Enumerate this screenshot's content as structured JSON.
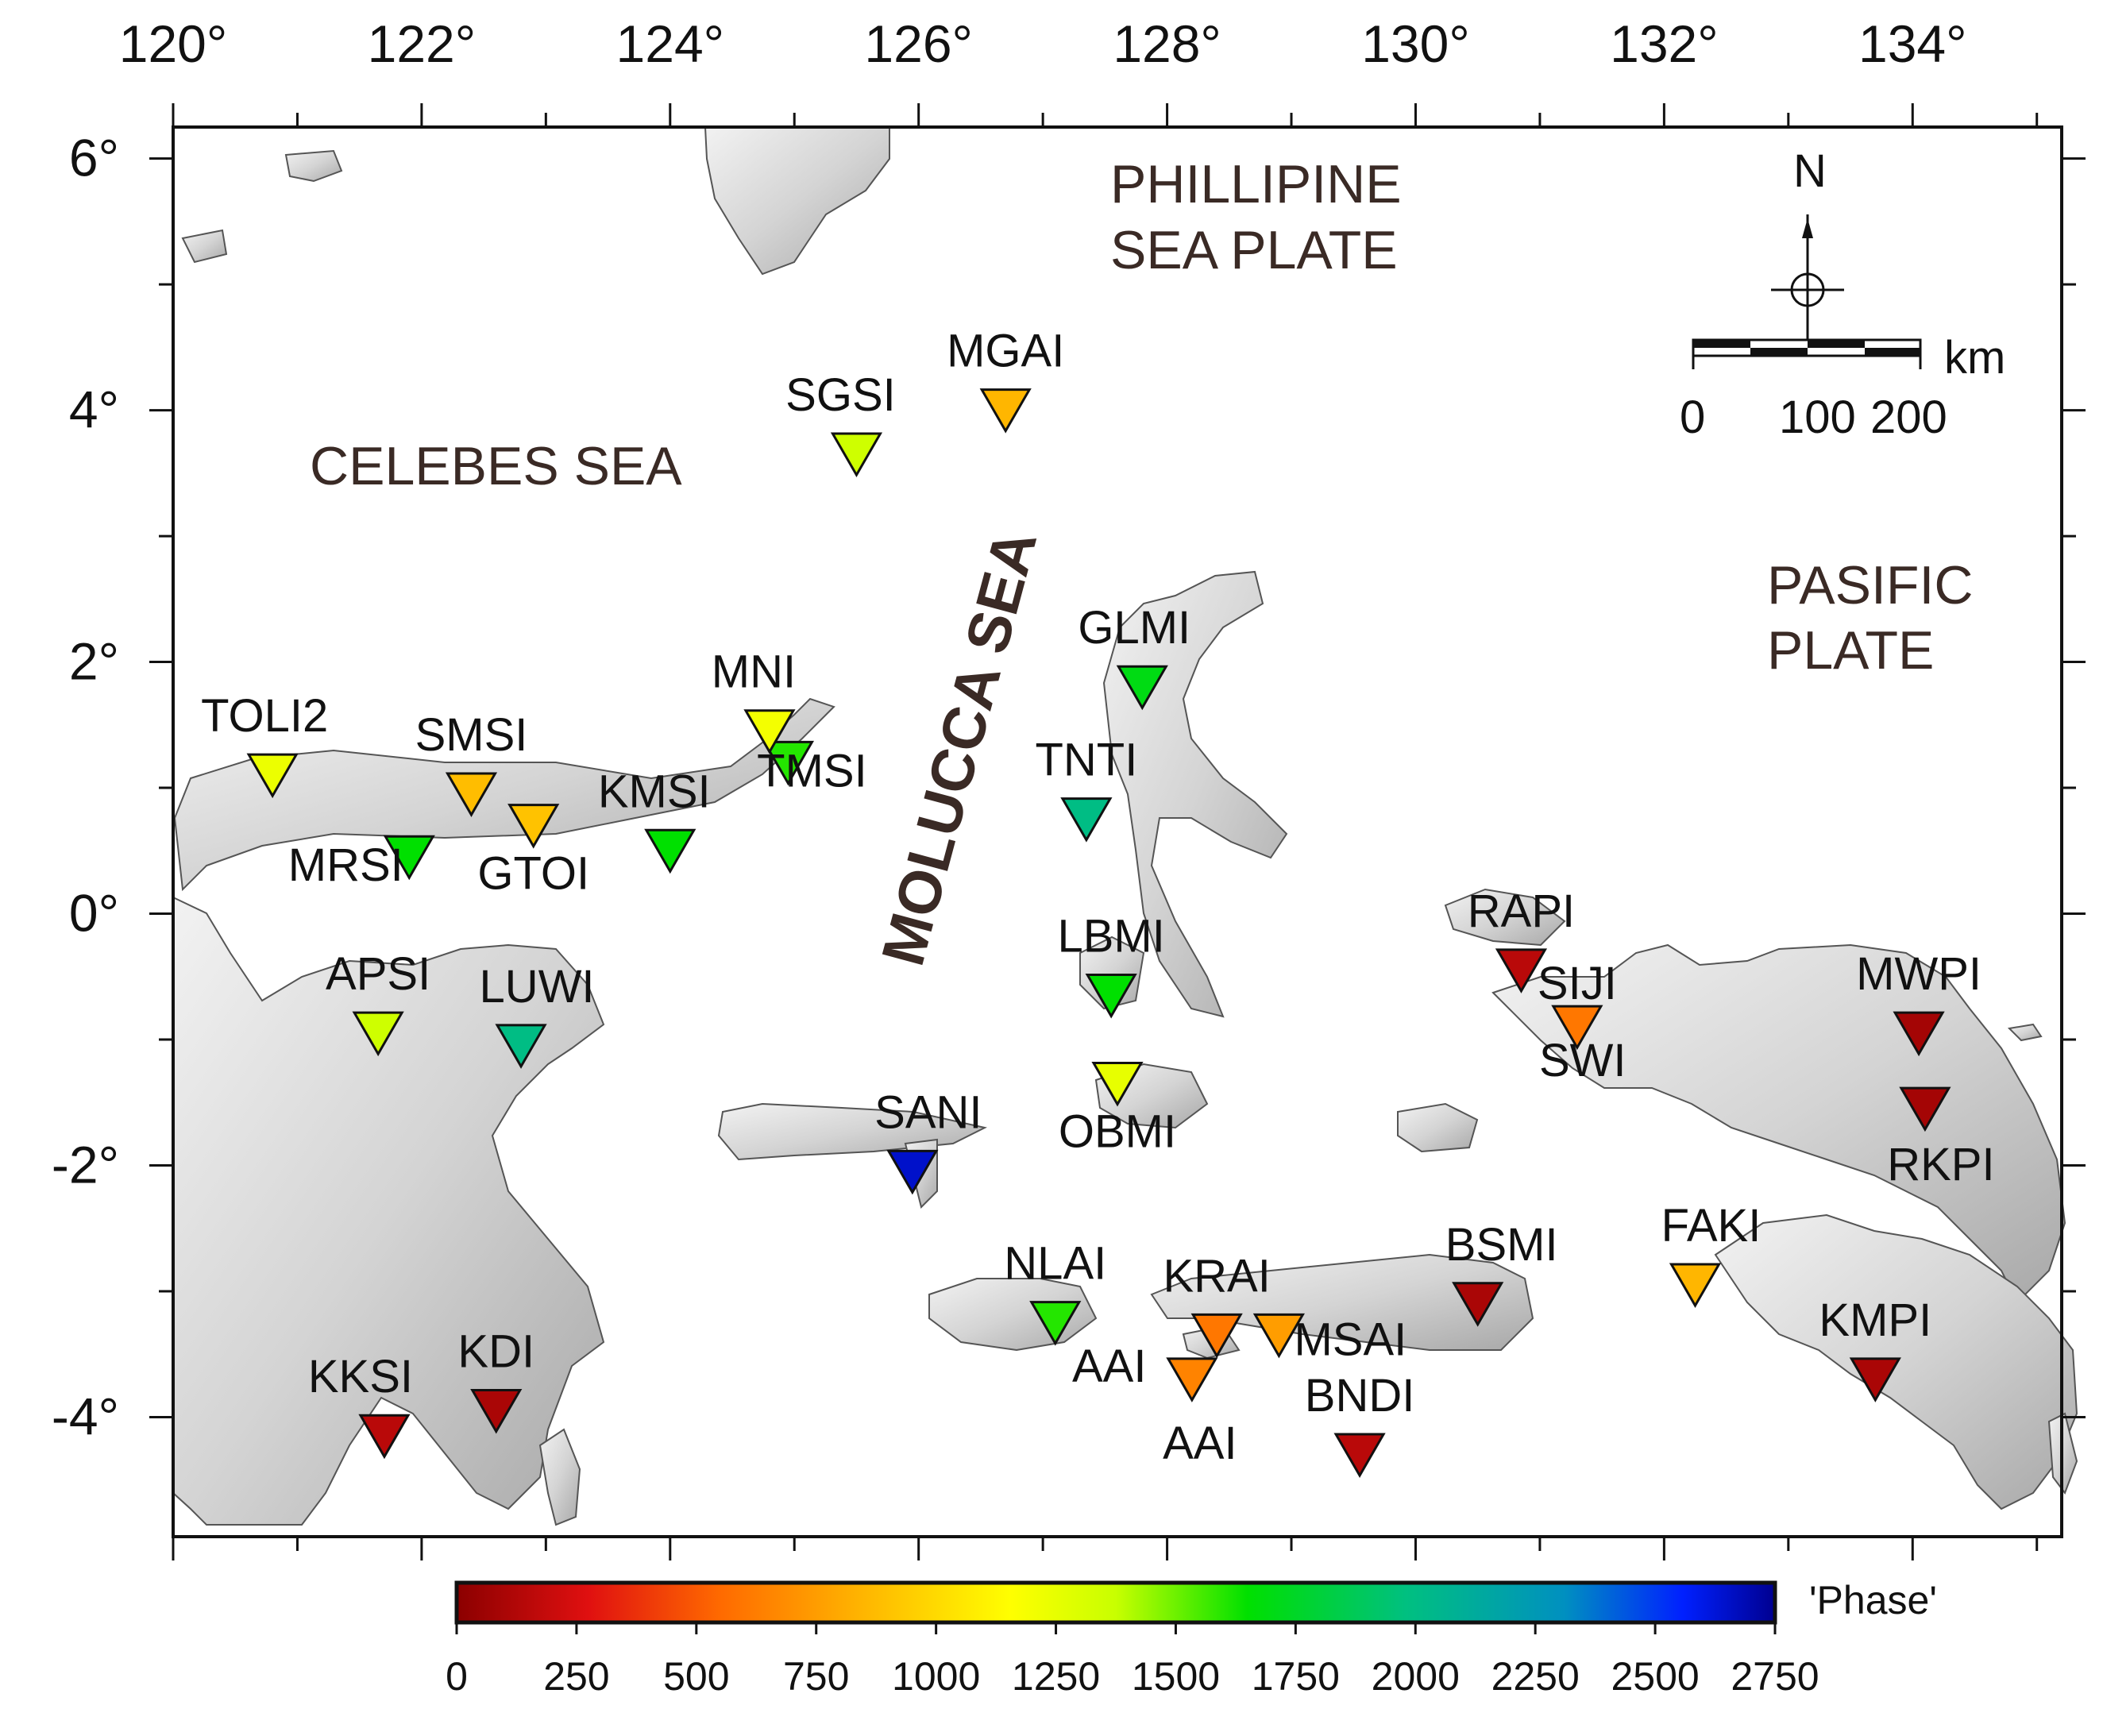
{
  "longitude_ticks": [
    "120°",
    "122°",
    "124°",
    "126°",
    "128°",
    "130°",
    "132°",
    "134°"
  ],
  "latitude_ticks": [
    "6°",
    "4°",
    "2°",
    "0°",
    "-2°",
    "-4°"
  ],
  "region_labels": {
    "phillipine_line1": "PHILLIPINE",
    "phillipine_line2": "SEA PLATE",
    "celebes": "CELEBES SEA",
    "molucca": "MOLUCCA SEA",
    "pasific_line1": "PASIFIC",
    "pasific_line2": "PLATE"
  },
  "compass": {
    "north_label": "N"
  },
  "scale_bar": {
    "unit": "km",
    "ticks": [
      "0",
      "100",
      "200"
    ]
  },
  "colorbar": {
    "title": "'Phase'",
    "ticks": [
      "0",
      "250",
      "500",
      "750",
      "1000",
      "1250",
      "1500",
      "1750",
      "2000",
      "2250",
      "2500",
      "2750"
    ],
    "range": [
      0,
      2750
    ],
    "colors": [
      "#8b0000",
      "#e01010",
      "#ff6a00",
      "#ffb000",
      "#ffff00",
      "#c8ff00",
      "#00e000",
      "#00c080",
      "#0090c0",
      "#0020ff",
      "#000090"
    ]
  },
  "stations": [
    {
      "name": "TOLI2",
      "lon": 120.8,
      "lat": 1.1,
      "phase": 1230
    },
    {
      "name": "SMSI",
      "lon": 122.4,
      "lat": 0.95,
      "phase": 880
    },
    {
      "name": "MRSI",
      "lon": 121.9,
      "lat": 0.45,
      "phase": 1650
    },
    {
      "name": "GTOI",
      "lon": 122.9,
      "lat": 0.7,
      "phase": 900
    },
    {
      "name": "KMSI",
      "lon": 124.0,
      "lat": 0.5,
      "phase": 1650
    },
    {
      "name": "TMSI",
      "lon": 124.95,
      "lat": 1.2,
      "phase": 1600
    },
    {
      "name": "MNI",
      "lon": 124.8,
      "lat": 1.45,
      "phase": 1200
    },
    {
      "name": "SGSI",
      "lon": 125.5,
      "lat": 3.65,
      "phase": 1350
    },
    {
      "name": "MGAI",
      "lon": 126.7,
      "lat": 4.0,
      "phase": 850
    },
    {
      "name": "GLMI",
      "lon": 127.8,
      "lat": 1.8,
      "phase": 1700
    },
    {
      "name": "TNTI",
      "lon": 127.35,
      "lat": 0.75,
      "phase": 2000
    },
    {
      "name": "LBMI",
      "lon": 127.55,
      "lat": -0.65,
      "phase": 1650
    },
    {
      "name": "OBMI",
      "lon": 127.6,
      "lat": -1.35,
      "phase": 1250
    },
    {
      "name": "APSI",
      "lon": 121.65,
      "lat": -0.95,
      "phase": 1350
    },
    {
      "name": "LUWI",
      "lon": 122.8,
      "lat": -1.05,
      "phase": 2000
    },
    {
      "name": "SANI",
      "lon": 125.95,
      "lat": -2.05,
      "phase": 2650
    },
    {
      "name": "NLAI",
      "lon": 127.1,
      "lat": -3.25,
      "phase": 1600
    },
    {
      "name": "KRAI",
      "lon": 128.4,
      "lat": -3.35,
      "phase": 600
    },
    {
      "name": "MSAI",
      "lon": 128.9,
      "lat": -3.35,
      "phase": 750
    },
    {
      "name": "AAI",
      "lon": 128.2,
      "lat": -3.7,
      "phase": 650
    },
    {
      "name": "BNDI",
      "lon": 129.55,
      "lat": -4.3,
      "phase": 150
    },
    {
      "name": "BSMI",
      "lon": 130.5,
      "lat": -3.1,
      "phase": 100
    },
    {
      "name": "RAPI",
      "lon": 130.85,
      "lat": -0.45,
      "phase": 150
    },
    {
      "name": "SIJI",
      "lon": 131.3,
      "lat": -0.9,
      "phase": 600
    },
    {
      "name": "FAKI",
      "lon": 132.25,
      "lat": -2.95,
      "phase": 850
    },
    {
      "name": "MWPI",
      "lon": 134.05,
      "lat": -0.95,
      "phase": 80
    },
    {
      "name": "RKPI",
      "lon": 134.1,
      "lat": -1.55,
      "phase": 80
    },
    {
      "name": "KMPI",
      "lon": 133.7,
      "lat": -3.7,
      "phase": 100
    },
    {
      "name": "KKSI",
      "lon": 121.7,
      "lat": -4.15,
      "phase": 150
    },
    {
      "name": "KDI",
      "lon": 122.6,
      "lat": -3.95,
      "phase": 100
    }
  ],
  "extra_labels": {
    "swi": "SWI",
    "aai_left": "AAI"
  }
}
